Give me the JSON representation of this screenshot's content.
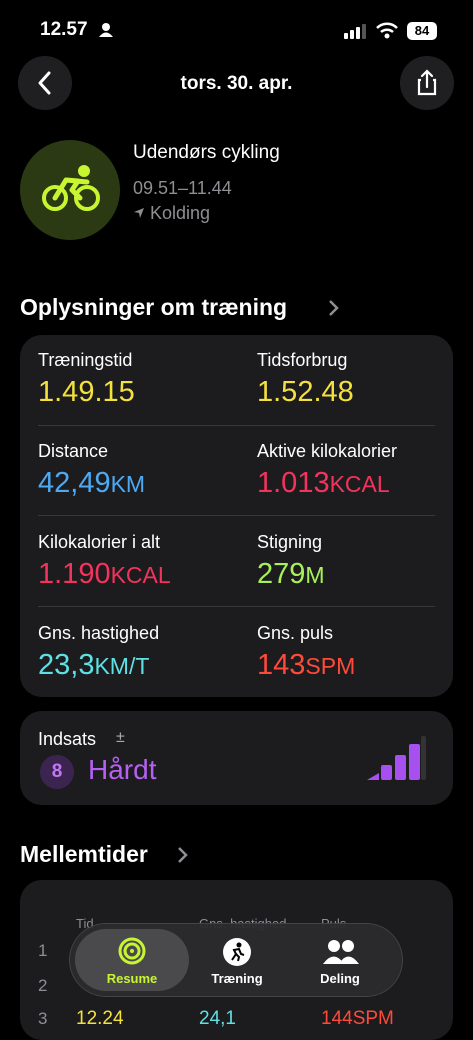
{
  "status_bar": {
    "time": "12.57",
    "battery": "84"
  },
  "header": {
    "title": "tors. 30. apr."
  },
  "workout": {
    "name": "Udendørs cykling",
    "time_range": "09.51–11.44",
    "location": "Kolding"
  },
  "details": {
    "title": "Oplysninger om træning",
    "metrics": [
      {
        "label": "Træningstid",
        "value": "1.49.15",
        "unit": ""
      },
      {
        "label": "Tidsforbrug",
        "value": "1.52.48",
        "unit": ""
      },
      {
        "label": "Distance",
        "value": "42,49",
        "unit": "KM"
      },
      {
        "label": "Aktive kilokalorier",
        "value": "1.013",
        "unit": "KCAL"
      },
      {
        "label": "Kilokalorier i alt",
        "value": "1.190",
        "unit": "KCAL"
      },
      {
        "label": "Stigning",
        "value": "279",
        "unit": "M"
      },
      {
        "label": "Gns. hastighed",
        "value": "23,3",
        "unit": "KM/T"
      },
      {
        "label": "Gns. puls",
        "value": "143",
        "unit": "SPM"
      }
    ]
  },
  "effort": {
    "label": "Indsats",
    "adjust": "±",
    "score": "8",
    "level": "Hårdt"
  },
  "splits": {
    "title": "Mellemtider",
    "columns": [
      "Tid",
      "Gns. hastighed",
      "Puls"
    ],
    "rows": [
      {
        "index": "1"
      },
      {
        "index": "2"
      },
      {
        "index": "3",
        "time": "12.24",
        "speed": "24,1",
        "pulse": "144SPM"
      }
    ]
  },
  "tab_bar": {
    "tabs": [
      "Resume",
      "Træning",
      "Deling"
    ]
  }
}
